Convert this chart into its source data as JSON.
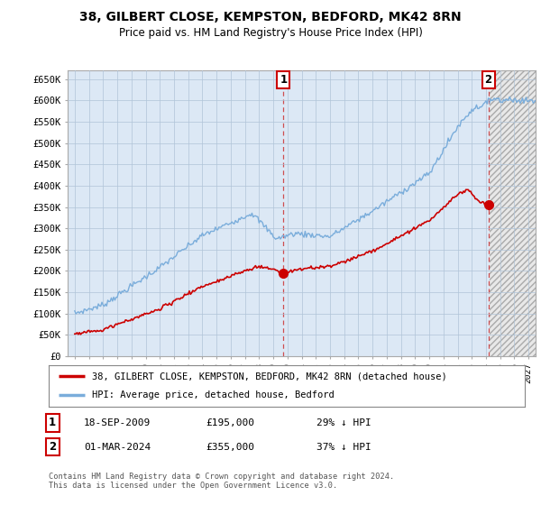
{
  "title": "38, GILBERT CLOSE, KEMPSTON, BEDFORD, MK42 8RN",
  "subtitle": "Price paid vs. HM Land Registry's House Price Index (HPI)",
  "ylabel_ticks": [
    "£0",
    "£50K",
    "£100K",
    "£150K",
    "£200K",
    "£250K",
    "£300K",
    "£350K",
    "£400K",
    "£450K",
    "£500K",
    "£550K",
    "£600K",
    "£650K"
  ],
  "ytick_values": [
    0,
    50000,
    100000,
    150000,
    200000,
    250000,
    300000,
    350000,
    400000,
    450000,
    500000,
    550000,
    600000,
    650000
  ],
  "xlim_start": 1994.5,
  "xlim_end": 2027.5,
  "ylim_min": 0,
  "ylim_max": 670000,
  "sale1_x": 2009.72,
  "sale1_y": 195000,
  "sale2_x": 2024.17,
  "sale2_y": 355000,
  "sale1_date": "18-SEP-2009",
  "sale1_price": "£195,000",
  "sale1_pct": "29% ↓ HPI",
  "sale2_date": "01-MAR-2024",
  "sale2_price": "£355,000",
  "sale2_pct": "37% ↓ HPI",
  "house_line_color": "#cc0000",
  "hpi_line_color": "#7aaddb",
  "house_legend": "38, GILBERT CLOSE, KEMPSTON, BEDFORD, MK42 8RN (detached house)",
  "hpi_legend": "HPI: Average price, detached house, Bedford",
  "copyright_text": "Contains HM Land Registry data © Crown copyright and database right 2024.\nThis data is licensed under the Open Government Licence v3.0.",
  "background_color": "#ffffff",
  "plot_bg_color": "#dce8f5",
  "grid_color": "#b0c4d8",
  "xticks": [
    1995,
    1996,
    1997,
    1998,
    1999,
    2000,
    2001,
    2002,
    2003,
    2004,
    2005,
    2006,
    2007,
    2008,
    2009,
    2010,
    2011,
    2012,
    2013,
    2014,
    2015,
    2016,
    2017,
    2018,
    2019,
    2020,
    2021,
    2022,
    2023,
    2024,
    2025,
    2026,
    2027
  ],
  "future_start": 2024.25
}
